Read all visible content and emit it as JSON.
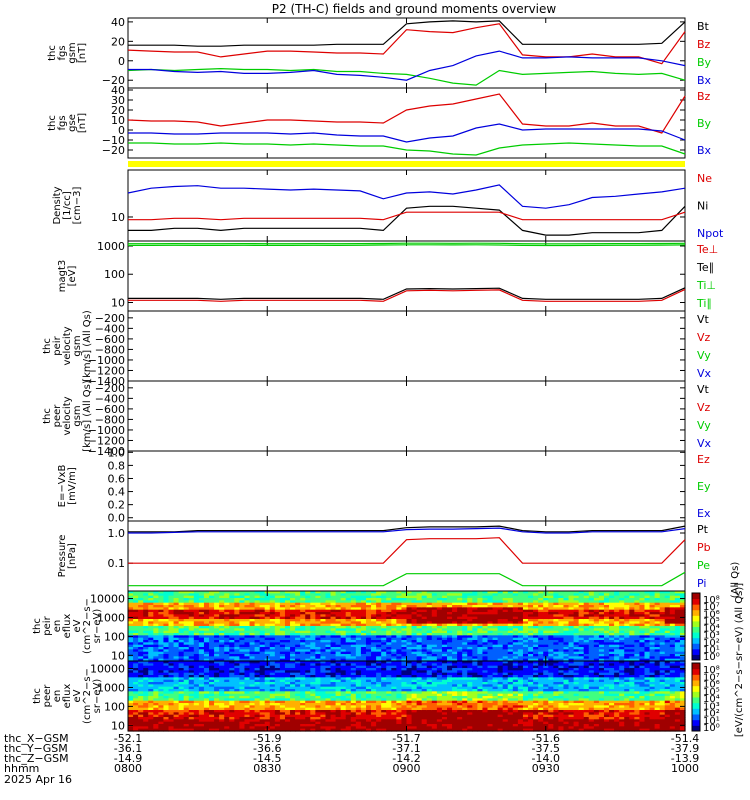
{
  "title": "P2 (TH-C) fields and ground moments overview",
  "panels": [
    {
      "id": "p1",
      "ylabel": [
        "thc",
        "fgs",
        "gsm",
        "[nT]"
      ],
      "ticks": [
        {
          "v": 40,
          "t": "40"
        },
        {
          "v": 20,
          "t": "20"
        },
        {
          "v": 0,
          "t": "0"
        },
        {
          "v": -20,
          "t": "−20"
        }
      ],
      "ylim": [
        -28,
        44
      ],
      "log": false,
      "legend": [
        {
          "text": "Bt",
          "color": "#000000"
        },
        {
          "text": "Bz",
          "color": "#dd0000"
        },
        {
          "text": "By",
          "color": "#00cc00"
        },
        {
          "text": "Bx",
          "color": "#0000dd"
        }
      ]
    },
    {
      "id": "p2",
      "ylabel": [
        "thc",
        "fgs",
        "gse",
        "[nT]"
      ],
      "ticks": [
        {
          "v": 40,
          "t": "40"
        },
        {
          "v": 30,
          "t": "30"
        },
        {
          "v": 20,
          "t": "20"
        },
        {
          "v": 10,
          "t": "10"
        },
        {
          "v": 0,
          "t": "0"
        },
        {
          "v": -10,
          "t": "−10"
        },
        {
          "v": -20,
          "t": "−20"
        }
      ],
      "ylim": [
        -28,
        42
      ],
      "log": false,
      "legend": [
        {
          "text": "Bz",
          "color": "#dd0000"
        },
        {
          "text": "By",
          "color": "#00cc00"
        },
        {
          "text": "Bx",
          "color": "#0000dd"
        }
      ]
    },
    {
      "id": "p3",
      "ylabel": [
        "Density",
        "[1/cc]",
        "[cm−3]"
      ],
      "ticks": [
        {
          "v": 10,
          "t": "10"
        }
      ],
      "ylim": [
        4,
        60
      ],
      "log": true,
      "legend": [
        {
          "text": "Ne",
          "color": "#dd0000"
        },
        {
          "text": "Ni",
          "color": "#000000"
        },
        {
          "text": "Npot",
          "color": "#0000dd"
        }
      ]
    },
    {
      "id": "p4",
      "ylabel": [
        "magt3",
        "[eV]"
      ],
      "ticks": [
        {
          "v": 1000,
          "t": "1000"
        },
        {
          "v": 100,
          "t": "100"
        },
        {
          "v": 10,
          "t": "10"
        }
      ],
      "ylim": [
        5,
        1500
      ],
      "log": true,
      "legend": [
        {
          "text": "Te⊥",
          "color": "#dd0000"
        },
        {
          "text": "Te∥",
          "color": "#000000"
        },
        {
          "text": "Ti⊥",
          "color": "#00cc00"
        },
        {
          "text": "Ti∥",
          "color": "#00cc00"
        }
      ]
    },
    {
      "id": "p5",
      "ylabel": [
        "thc",
        "peir",
        "velocity",
        "gsm",
        "[km/s] (All Qs)"
      ],
      "ticks": [
        {
          "v": -200,
          "t": "−200"
        },
        {
          "v": -400,
          "t": "−400"
        },
        {
          "v": -600,
          "t": "−600"
        },
        {
          "v": -800,
          "t": "−800"
        },
        {
          "v": -1000,
          "t": "−1000"
        },
        {
          "v": -1200,
          "t": "−1200"
        },
        {
          "v": -1400,
          "t": "−1400"
        }
      ],
      "ylim": [
        -1400,
        -70
      ],
      "log": false,
      "legend": [
        {
          "text": "Vt",
          "color": "#000000"
        },
        {
          "text": "Vz",
          "color": "#dd0000"
        },
        {
          "text": "Vy",
          "color": "#00cc00"
        },
        {
          "text": "Vx",
          "color": "#0000dd"
        }
      ]
    },
    {
      "id": "p6",
      "ylabel": [
        "thc",
        "peer",
        "velocity",
        "gsm",
        "[km/s] (All Qs)"
      ],
      "ticks": [
        {
          "v": -200,
          "t": "−200"
        },
        {
          "v": -400,
          "t": "−400"
        },
        {
          "v": -600,
          "t": "−600"
        },
        {
          "v": -800,
          "t": "−800"
        },
        {
          "v": -1000,
          "t": "−1000"
        },
        {
          "v": -1200,
          "t": "−1200"
        },
        {
          "v": -1400,
          "t": "−1400"
        }
      ],
      "ylim": [
        -1400,
        -70
      ],
      "log": false,
      "legend": [
        {
          "text": "Vt",
          "color": "#000000"
        },
        {
          "text": "Vz",
          "color": "#dd0000"
        },
        {
          "text": "Vy",
          "color": "#00cc00"
        },
        {
          "text": "Vx",
          "color": "#0000dd"
        }
      ]
    },
    {
      "id": "p7",
      "ylabel": [
        "E=−VxB",
        "[mV/m]"
      ],
      "ticks": [
        {
          "v": 1.0,
          "t": "1.0"
        },
        {
          "v": 0.8,
          "t": "0.8"
        },
        {
          "v": 0.6,
          "t": "0.6"
        },
        {
          "v": 0.4,
          "t": "0.4"
        },
        {
          "v": 0.2,
          "t": "0.2"
        },
        {
          "v": 0.0,
          "t": "0.0"
        }
      ],
      "ylim": [
        -0.05,
        1.02
      ],
      "log": false,
      "legend": [
        {
          "text": "Ez",
          "color": "#dd0000"
        },
        {
          "text": "Ey",
          "color": "#00cc00"
        },
        {
          "text": "Ex",
          "color": "#0000dd"
        }
      ]
    },
    {
      "id": "p8",
      "ylabel": [
        "Pressure",
        "[nPa]"
      ],
      "ticks": [
        {
          "v": 1.0,
          "t": "1.0"
        },
        {
          "v": 0.1,
          "t": "0.1"
        }
      ],
      "ylim": [
        0.012,
        2.5
      ],
      "log": true,
      "legend": [
        {
          "text": "Pt",
          "color": "#000000"
        },
        {
          "text": "Pb",
          "color": "#dd0000"
        },
        {
          "text": "Pe",
          "color": "#00cc00"
        },
        {
          "text": "Pi",
          "color": "#0000dd"
        }
      ]
    },
    {
      "id": "p9",
      "ylabel": [
        "thc",
        "peir",
        "en",
        "eflux",
        "eV",
        "(cm^2−s−",
        "sr−eV)"
      ],
      "ticks": [
        {
          "v": 10000,
          "t": "10000"
        },
        {
          "v": 1000,
          "t": "1000"
        },
        {
          "v": 100,
          "t": "100"
        },
        {
          "v": 10,
          "t": "10"
        }
      ],
      "ylim": [
        5,
        25000
      ],
      "log": true,
      "spectrogram": "ion"
    },
    {
      "id": "p10",
      "ylabel": [
        "thc",
        "peer",
        "en",
        "eflux",
        "eV",
        "(cm^2−s−",
        "sr−eV)"
      ],
      "ticks": [
        {
          "v": 10000,
          "t": "10000"
        },
        {
          "v": 1000,
          "t": "1000"
        },
        {
          "v": 100,
          "t": "100"
        },
        {
          "v": 10,
          "t": "10"
        }
      ],
      "ylim": [
        5,
        25000
      ],
      "log": true,
      "spectrogram": "electron"
    }
  ],
  "yellow_bar_color": "#ffff00",
  "colorbar": {
    "label_p8": "(All Qs)",
    "label_spec": "[eV/(cm^2−s−sr−eV)]",
    "label_spec2": "[eV/(cm^2−s−sr−eV) (All Qs)]",
    "ticks_upper": [
      "10⁸",
      "10⁷",
      "10⁶",
      "10⁵",
      "10⁴",
      "10³",
      "10²",
      "10¹",
      "10⁰"
    ],
    "ticks_lower": [
      "10⁸",
      "10⁷",
      "10⁶",
      "10⁵",
      "10⁴",
      "10³",
      "10²",
      "10¹",
      "10⁰"
    ]
  },
  "x_axis": {
    "row_labels": [
      "thc_X−GSM",
      "thc_Y−GSM",
      "thc_Z−GSM",
      "hhmm",
      "2025 Apr 16"
    ],
    "columns": [
      {
        "x": "-52.1",
        "y": "-36.1",
        "z": "-14.9",
        "t": "0800"
      },
      {
        "x": "-51.9",
        "y": "-36.6",
        "z": "-14.5",
        "t": "0830"
      },
      {
        "x": "-51.7",
        "y": "-37.1",
        "z": "-14.2",
        "t": "0900"
      },
      {
        "x": "-51.6",
        "y": "-37.5",
        "z": "-14.0",
        "t": "0930"
      },
      {
        "x": "-51.4",
        "y": "-37.9",
        "z": "-13.9",
        "t": "1000"
      }
    ]
  },
  "chart_data": {
    "type": "line",
    "title": "P2 (TH-C) fields and ground moments overview",
    "x_unit": "hhmm",
    "x_ticks": [
      "0800",
      "0830",
      "0900",
      "0930",
      "1000"
    ],
    "x_minutes": [
      0,
      5,
      10,
      15,
      20,
      25,
      30,
      35,
      40,
      45,
      50,
      55,
      60,
      65,
      70,
      75,
      80,
      85,
      90,
      95,
      100,
      105,
      110,
      115,
      120
    ],
    "series": [
      {
        "panel": "p1",
        "name": "Bt",
        "color": "#000000",
        "values": [
          16,
          16,
          16,
          15,
          15,
          16,
          16,
          16,
          16,
          17,
          17,
          17,
          38,
          40,
          41,
          40,
          41,
          17,
          17,
          17,
          17,
          17,
          17,
          18,
          40
        ]
      },
      {
        "panel": "p1",
        "name": "Bz",
        "color": "#dd0000",
        "values": [
          11,
          10,
          9,
          9,
          4,
          7,
          10,
          10,
          9,
          8,
          8,
          7,
          32,
          30,
          29,
          34,
          38,
          6,
          4,
          4,
          7,
          4,
          4,
          -3,
          30
        ]
      },
      {
        "panel": "p1",
        "name": "By",
        "color": "#00cc00",
        "values": [
          -10,
          -9,
          -10,
          -9,
          -8,
          -9,
          -9,
          -10,
          -9,
          -11,
          -11,
          -13,
          -14,
          -18,
          -23,
          -25,
          -10,
          -14,
          -13,
          -12,
          -11,
          -13,
          -14,
          -13,
          -20
        ]
      },
      {
        "panel": "p1",
        "name": "Bx",
        "color": "#0000dd",
        "values": [
          -9,
          -9,
          -11,
          -12,
          -11,
          -13,
          -13,
          -12,
          -10,
          -14,
          -15,
          -17,
          -20,
          -10,
          -5,
          5,
          10,
          3,
          3,
          4,
          3,
          3,
          3,
          0,
          -5
        ]
      },
      {
        "panel": "p2",
        "name": "Bz",
        "color": "#dd0000",
        "values": [
          10,
          9,
          9,
          8,
          4,
          7,
          10,
          10,
          9,
          8,
          8,
          7,
          20,
          24,
          26,
          31,
          36,
          6,
          4,
          4,
          7,
          4,
          4,
          -3,
          34
        ]
      },
      {
        "panel": "p2",
        "name": "By",
        "color": "#00cc00",
        "values": [
          -13,
          -13,
          -14,
          -14,
          -13,
          -14,
          -14,
          -15,
          -14,
          -15,
          -16,
          -16,
          -20,
          -21,
          -24,
          -25,
          -18,
          -15,
          -14,
          -13,
          -14,
          -15,
          -16,
          -16,
          -24
        ]
      },
      {
        "panel": "p2",
        "name": "Bx",
        "color": "#0000dd",
        "values": [
          -3,
          -3,
          -4,
          -4,
          -3,
          -3,
          -3,
          -4,
          -3,
          -5,
          -6,
          -6,
          -12,
          -8,
          -6,
          2,
          6,
          0,
          1,
          1,
          1,
          1,
          1,
          -1,
          -10
        ]
      },
      {
        "panel": "p3",
        "name": "Npot",
        "color": "#0000dd",
        "values": [
          25,
          30,
          32,
          33,
          30,
          30,
          29,
          28,
          29,
          28,
          27,
          20,
          25,
          26,
          24,
          28,
          34,
          15,
          14,
          16,
          21,
          22,
          24,
          26,
          30
        ]
      },
      {
        "panel": "p3",
        "name": "Ni",
        "color": "#000000",
        "values": [
          6,
          6,
          6.5,
          6.5,
          6,
          6.5,
          6.5,
          6.5,
          6.5,
          6.5,
          6.5,
          6,
          14,
          15,
          15,
          14,
          13,
          6,
          5,
          5,
          5.5,
          5.5,
          5.5,
          6,
          15
        ]
      },
      {
        "panel": "p3",
        "name": "Ne",
        "color": "#dd0000",
        "values": [
          9,
          9,
          9.5,
          9.5,
          9,
          9.5,
          9.5,
          9.5,
          9.5,
          9.5,
          9.5,
          9,
          12,
          12,
          12,
          12,
          12,
          9,
          9,
          9,
          9,
          9,
          9,
          9,
          12
        ]
      },
      {
        "panel": "p4",
        "name": "Ti∥",
        "color": "#00cc00",
        "values": [
          1050,
          1050,
          1060,
          1050,
          1050,
          1060,
          1050,
          1050,
          1060,
          1050,
          1060,
          1080,
          1100,
          1100,
          1090,
          1100,
          1080,
          1050,
          1040,
          1040,
          1050,
          1060,
          1060,
          1070,
          1090
        ]
      },
      {
        "panel": "p4",
        "name": "Ti⊥",
        "color": "#00cc00",
        "values": [
          1200,
          1200,
          1210,
          1200,
          1200,
          1210,
          1200,
          1200,
          1210,
          1200,
          1210,
          1220,
          1250,
          1250,
          1240,
          1250,
          1240,
          1200,
          1190,
          1190,
          1200,
          1210,
          1210,
          1220,
          1240
        ]
      },
      {
        "panel": "p4",
        "name": "Te∥",
        "color": "#000000",
        "values": [
          14,
          14,
          14,
          14,
          13,
          14,
          14,
          14,
          14,
          14,
          14,
          13,
          30,
          31,
          30,
          31,
          32,
          14,
          13,
          13,
          13,
          13,
          13,
          14,
          33
        ]
      },
      {
        "panel": "p4",
        "name": "Te⊥",
        "color": "#dd0000",
        "values": [
          12,
          12,
          12,
          12,
          11,
          12,
          12,
          12,
          12,
          12,
          12,
          11,
          26,
          27,
          26,
          27,
          28,
          12,
          11,
          11,
          11,
          11,
          11,
          12,
          29
        ]
      },
      {
        "panel": "p8",
        "name": "Pt",
        "color": "#000000",
        "values": [
          1.1,
          1.1,
          1.1,
          1.2,
          1.2,
          1.2,
          1.2,
          1.2,
          1.2,
          1.2,
          1.2,
          1.2,
          1.5,
          1.6,
          1.6,
          1.6,
          1.7,
          1.2,
          1.1,
          1.1,
          1.2,
          1.2,
          1.2,
          1.2,
          1.7
        ]
      },
      {
        "panel": "p8",
        "name": "Pi",
        "color": "#0000dd",
        "values": [
          1.0,
          1.0,
          1.05,
          1.1,
          1.1,
          1.1,
          1.1,
          1.1,
          1.1,
          1.1,
          1.1,
          1.1,
          1.3,
          1.35,
          1.35,
          1.4,
          1.45,
          1.1,
          1.0,
          1.0,
          1.1,
          1.1,
          1.1,
          1.1,
          1.4
        ]
      },
      {
        "panel": "p8",
        "name": "Pb",
        "color": "#dd0000",
        "values": [
          0.1,
          0.1,
          0.1,
          0.1,
          0.1,
          0.1,
          0.1,
          0.1,
          0.1,
          0.1,
          0.1,
          0.1,
          0.6,
          0.65,
          0.65,
          0.65,
          0.7,
          0.1,
          0.1,
          0.1,
          0.1,
          0.1,
          0.1,
          0.1,
          0.6
        ]
      },
      {
        "panel": "p8",
        "name": "Pe",
        "color": "#00cc00",
        "values": [
          0.018,
          0.018,
          0.018,
          0.018,
          0.018,
          0.018,
          0.018,
          0.018,
          0.018,
          0.018,
          0.018,
          0.018,
          0.045,
          0.045,
          0.045,
          0.045,
          0.045,
          0.018,
          0.018,
          0.018,
          0.018,
          0.018,
          0.018,
          0.018,
          0.05
        ]
      }
    ]
  }
}
